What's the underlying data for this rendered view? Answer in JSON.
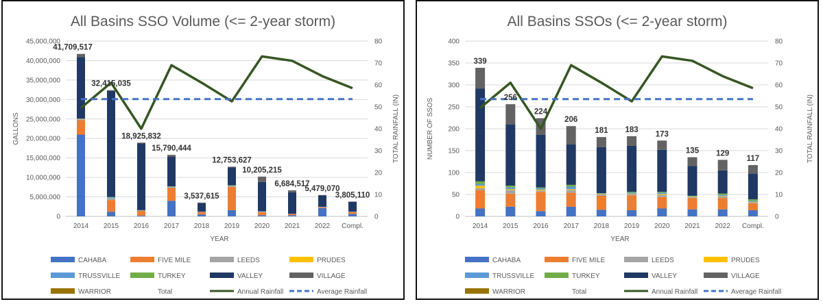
{
  "colors": {
    "CAHABA": "#4472C4",
    "FIVE MILE": "#ED7D31",
    "LEEDS": "#A5A5A5",
    "PRUDES": "#FFC000",
    "TRUSSVILLE": "#5B9BD5",
    "TURKEY": "#70AD47",
    "VALLEY": "#203864",
    "VILLAGE": "#636363",
    "WARRIOR": "#997300",
    "Annual Rainfall": "#375623",
    "Average Rainfall": "#4472C4"
  },
  "legend": {
    "items": [
      {
        "label": "CAHABA",
        "kind": "bar",
        "color": "#4472C4"
      },
      {
        "label": "FIVE MILE",
        "kind": "bar",
        "color": "#ED7D31"
      },
      {
        "label": "LEEDS",
        "kind": "bar",
        "color": "#A5A5A5"
      },
      {
        "label": "PRUDES",
        "kind": "bar",
        "color": "#FFC000"
      },
      {
        "label": "TRUSSVILLE",
        "kind": "bar",
        "color": "#5B9BD5"
      },
      {
        "label": "TURKEY",
        "kind": "bar",
        "color": "#70AD47"
      },
      {
        "label": "VALLEY",
        "kind": "bar",
        "color": "#203864"
      },
      {
        "label": "VILLAGE",
        "kind": "bar",
        "color": "#636363"
      },
      {
        "label": "WARRIOR",
        "kind": "bar",
        "color": "#997300"
      },
      {
        "label": "Total",
        "kind": "none",
        "color": ""
      },
      {
        "label": "Annual Rainfall",
        "kind": "line",
        "color": "#375623"
      },
      {
        "label": "Average Rainfall",
        "kind": "dash",
        "color": "#4472C4"
      }
    ]
  },
  "chart_data": [
    {
      "type": "bar",
      "stacked": true,
      "title": "All Basins SSO Volume (<= 2-year storm)",
      "xlabel": "YEAR",
      "ylabel": "GALLONS",
      "y2label": "TOTAL RAINFALL (IN)",
      "categories": [
        "2014",
        "2015",
        "2016",
        "2017",
        "2018",
        "2019",
        "2020",
        "2021",
        "2022",
        "Compl."
      ],
      "ylim": [
        0,
        45000000
      ],
      "yticks": [
        "0",
        "5,000,000",
        "10,000,000",
        "15,000,000",
        "20,000,000",
        "25,000,000",
        "30,000,000",
        "35,000,000",
        "40,000,000",
        "45,000,000"
      ],
      "y2lim": [
        0,
        80
      ],
      "y2ticks": [
        "0",
        "10",
        "20",
        "30",
        "40",
        "50",
        "60",
        "70",
        "80"
      ],
      "series": [
        {
          "name": "CAHABA",
          "values": [
            21000000,
            1200000,
            200000,
            4000000,
            500000,
            1600000,
            300000,
            300000,
            2100000,
            600000
          ]
        },
        {
          "name": "FIVE MILE",
          "values": [
            3700000,
            3000000,
            1200000,
            3300000,
            600000,
            6000000,
            800000,
            300000,
            200000,
            500000
          ]
        },
        {
          "name": "LEEDS",
          "values": [
            200000,
            500000,
            100000,
            200000,
            50000,
            200000,
            100000,
            50000,
            100000,
            50000
          ]
        },
        {
          "name": "PRUDES",
          "values": [
            100000,
            0,
            0,
            0,
            0,
            0,
            0,
            0,
            0,
            0
          ]
        },
        {
          "name": "TRUSSVILLE",
          "values": [
            100000,
            200000,
            50000,
            100000,
            50000,
            100000,
            100000,
            0,
            50000,
            50000
          ]
        },
        {
          "name": "TURKEY",
          "values": [
            0,
            100000,
            50000,
            100000,
            0,
            100000,
            0,
            0,
            0,
            0
          ]
        },
        {
          "name": "VALLEY",
          "values": [
            15809517,
            27215035,
            17125832,
            7590444,
            2200000,
            4553627,
            7505215,
            5534517,
            2929070,
            2555110
          ]
        },
        {
          "name": "VILLAGE",
          "values": [
            800000,
            200000,
            200000,
            500000,
            137615,
            200000,
            1400000,
            500000,
            100000,
            50000
          ]
        },
        {
          "name": "WARRIOR",
          "values": [
            0,
            0,
            0,
            0,
            0,
            0,
            0,
            0,
            0,
            0
          ]
        }
      ],
      "totals": [
        41709517,
        32415035,
        18925832,
        15790444,
        3537615,
        12753627,
        10205215,
        6684517,
        5479070,
        3805110
      ],
      "total_labels": [
        "41,709,517",
        "32,415,035",
        "18,925,832",
        "15,790,444",
        "3,537,615",
        "12,753,627",
        "10,205,215",
        "6,684,517",
        "5,479,070",
        "3,805,110"
      ],
      "lines": [
        {
          "name": "Annual Rainfall",
          "axis": "secondary",
          "values": [
            49.5,
            61,
            40,
            69,
            61,
            52.5,
            73,
            71,
            64,
            58.5
          ]
        },
        {
          "name": "Average Rainfall",
          "axis": "secondary",
          "style": "dashed",
          "values": [
            53.5,
            53.5,
            53.5,
            53.5,
            53.5,
            53.5,
            53.5,
            53.5,
            53.5,
            53.5
          ]
        }
      ]
    },
    {
      "type": "bar",
      "stacked": true,
      "title": "All Basins SSOs (<= 2-year storm)",
      "xlabel": "YEAR",
      "ylabel": "NUMBER OF SSOS",
      "y2label": "TOTAL RAINFALL (IN)",
      "categories": [
        "2014",
        "2015",
        "2016",
        "2017",
        "2018",
        "2019",
        "2020",
        "2021",
        "2022",
        "Compl."
      ],
      "ylim": [
        0,
        400
      ],
      "yticks": [
        "0",
        "50",
        "100",
        "150",
        "200",
        "250",
        "300",
        "350",
        "400"
      ],
      "y2lim": [
        0,
        80
      ],
      "y2ticks": [
        "0",
        "10",
        "20",
        "30",
        "40",
        "50",
        "60",
        "70",
        "80"
      ],
      "series": [
        {
          "name": "CAHABA",
          "values": [
            18,
            22,
            12,
            22,
            15,
            14,
            18,
            16,
            16,
            14
          ]
        },
        {
          "name": "FIVE MILE",
          "values": [
            42,
            30,
            44,
            32,
            32,
            34,
            26,
            26,
            26,
            16
          ]
        },
        {
          "name": "LEEDS",
          "values": [
            4,
            8,
            3,
            6,
            3,
            3,
            5,
            2,
            4,
            2
          ]
        },
        {
          "name": "PRUDES",
          "values": [
            6,
            2,
            2,
            2,
            1,
            1,
            2,
            1,
            1,
            1
          ]
        },
        {
          "name": "TRUSSVILLE",
          "values": [
            4,
            4,
            3,
            6,
            1,
            2,
            3,
            1,
            2,
            2
          ]
        },
        {
          "name": "TURKEY",
          "values": [
            6,
            4,
            2,
            4,
            1,
            2,
            2,
            1,
            3,
            4
          ]
        },
        {
          "name": "VALLEY",
          "values": [
            212,
            140,
            120,
            92,
            105,
            105,
            96,
            68,
            53,
            59
          ]
        },
        {
          "name": "VILLAGE",
          "values": [
            47,
            46,
            38,
            42,
            23,
            22,
            21,
            20,
            24,
            19
          ]
        },
        {
          "name": "WARRIOR",
          "values": [
            0,
            0,
            0,
            0,
            0,
            0,
            0,
            0,
            0,
            0
          ]
        }
      ],
      "totals": [
        339,
        256,
        224,
        206,
        181,
        183,
        173,
        135,
        129,
        117
      ],
      "total_labels": [
        "339",
        "256",
        "224",
        "206",
        "181",
        "183",
        "173",
        "135",
        "129",
        "117"
      ],
      "lines": [
        {
          "name": "Annual Rainfall",
          "axis": "secondary",
          "values": [
            49.5,
            61,
            40,
            69,
            61,
            52.5,
            73,
            71,
            64,
            58.5
          ]
        },
        {
          "name": "Average Rainfall",
          "axis": "secondary",
          "style": "dashed",
          "values": [
            53.5,
            53.5,
            53.5,
            53.5,
            53.5,
            53.5,
            53.5,
            53.5,
            53.5,
            53.5
          ]
        }
      ]
    }
  ]
}
